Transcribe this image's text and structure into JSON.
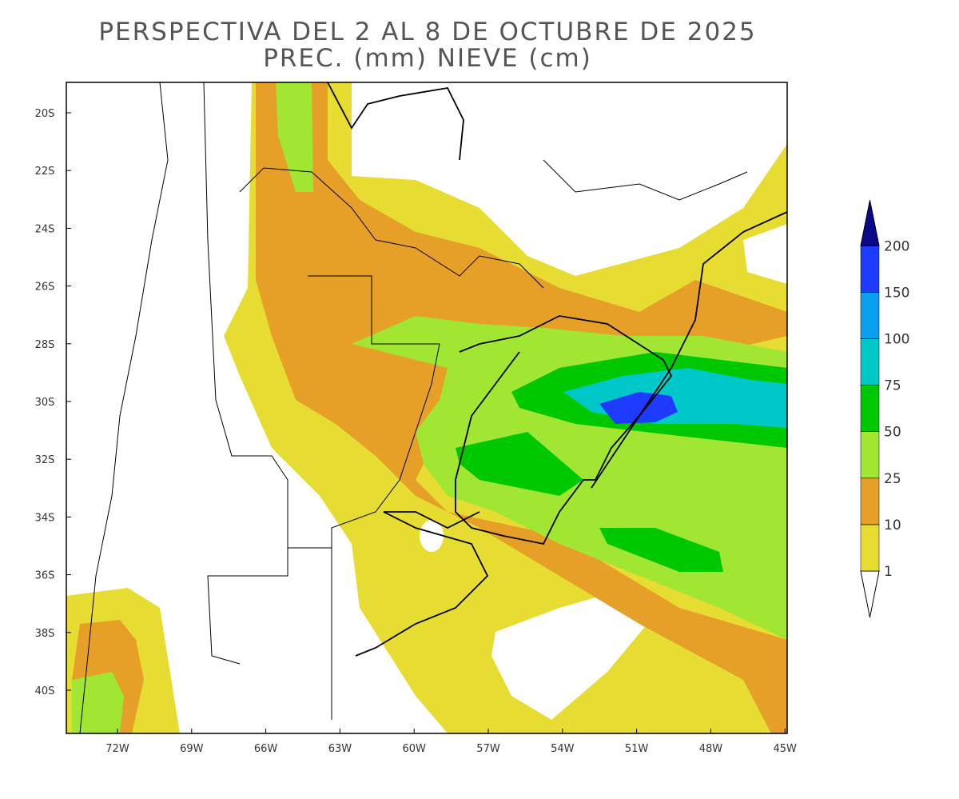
{
  "header": {
    "title": "PERSPECTIVA DEL 2 AL 8 DE OCTUBRE DE 2025",
    "subtitle": "PREC. (mm) NIEVE (cm)"
  },
  "map": {
    "lat_labels": [
      "20S",
      "22S",
      "24S",
      "26S",
      "28S",
      "30S",
      "32S",
      "34S",
      "36S",
      "38S",
      "40S"
    ],
    "lon_labels": [
      "72W",
      "69W",
      "66W",
      "63W",
      "60W",
      "57W",
      "54W",
      "51W",
      "48W",
      "45W"
    ]
  },
  "legend": {
    "levels": [
      1,
      10,
      25,
      50,
      75,
      100,
      150,
      200
    ],
    "colors": [
      "#ffffff",
      "#e6dc32",
      "#e6a028",
      "#a0e632",
      "#00c800",
      "#00c8c8",
      "#0aa0f0",
      "#1e3cff",
      "#0a0a8a"
    ]
  }
}
